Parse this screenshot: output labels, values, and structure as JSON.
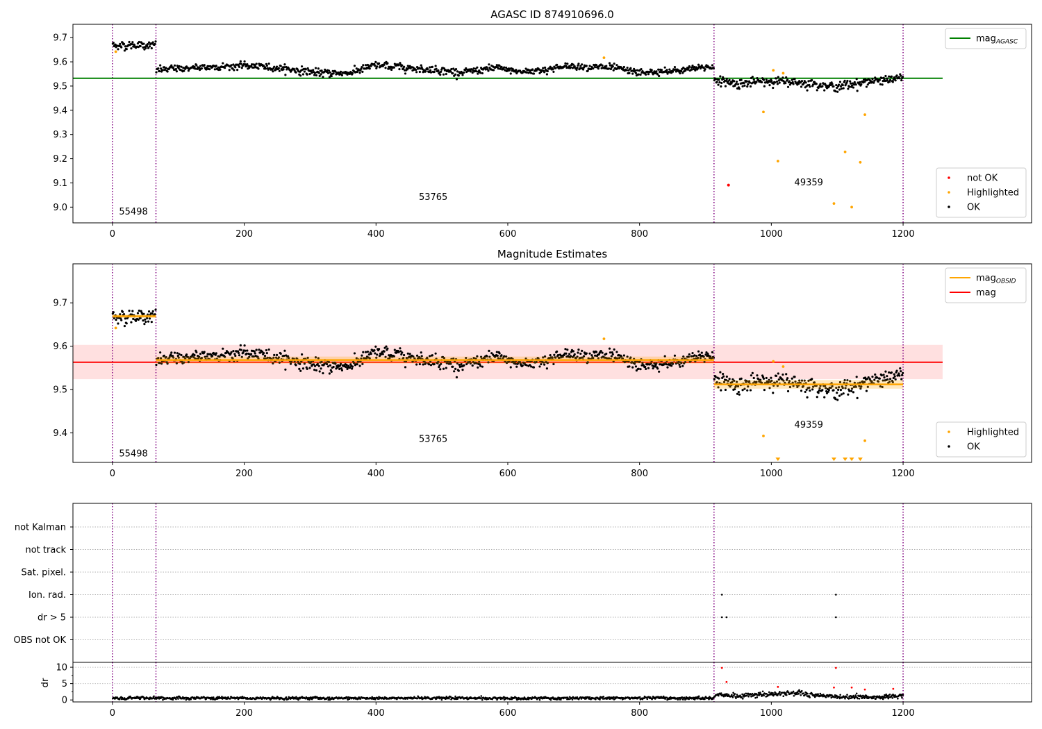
{
  "chart_data": [
    {
      "id": "agasc",
      "type": "scatter",
      "title": "AGASC ID 874910696.0",
      "xlim": [
        -60,
        1395
      ],
      "ylim": [
        8.935,
        9.755
      ],
      "xticks": [
        0,
        200,
        400,
        600,
        800,
        1000,
        1200
      ],
      "yticks": [
        9.0,
        9.1,
        9.2,
        9.3,
        9.4,
        9.5,
        9.6,
        9.7
      ],
      "ytick_labels": [
        "9.0",
        "9.1",
        "9.2",
        "9.3",
        "9.4",
        "9.5",
        "9.6",
        "9.7"
      ],
      "obs_boundaries": [
        0,
        66,
        913,
        1200
      ],
      "obs_labels": [
        {
          "text": "55498",
          "x": 10,
          "y": 8.97
        },
        {
          "text": "53765",
          "x": 465,
          "y": 9.03
        },
        {
          "text": "49359",
          "x": 1035,
          "y": 9.09
        }
      ],
      "lines": [
        {
          "name": "mag_AGASC",
          "color": "#008000",
          "y": 9.532,
          "x": [
            -60,
            1260
          ]
        }
      ],
      "legends": [
        {
          "position": "upper-right",
          "items": [
            {
              "label": "mag",
              "sub": "AGASC",
              "kind": "line",
              "color": "#008000"
            }
          ]
        },
        {
          "position": "lower-right",
          "items": [
            {
              "label": "not OK",
              "kind": "dot",
              "color": "#ff0000"
            },
            {
              "label": "Highlighted",
              "kind": "dot",
              "color": "#ffa500"
            },
            {
              "label": "OK",
              "kind": "dot",
              "color": "#000000"
            }
          ]
        }
      ],
      "ok_segments": [
        {
          "x": [
            0,
            66
          ],
          "level": 9.668,
          "sigma": 0.009
        },
        {
          "x": [
            66,
            913
          ],
          "level": [
            [
              66,
              9.567
            ],
            [
              120,
              9.575
            ],
            [
              200,
              9.585
            ],
            [
              250,
              9.575
            ],
            [
              320,
              9.553
            ],
            [
              360,
              9.555
            ],
            [
              400,
              9.585
            ],
            [
              450,
              9.575
            ],
            [
              500,
              9.565
            ],
            [
              530,
              9.555
            ],
            [
              580,
              9.575
            ],
            [
              620,
              9.558
            ],
            [
              700,
              9.583
            ],
            [
              760,
              9.575
            ],
            [
              800,
              9.555
            ],
            [
              850,
              9.56
            ],
            [
              913,
              9.582
            ]
          ],
          "sigma": 0.008
        },
        {
          "x": [
            913,
            1200
          ],
          "level": [
            [
              913,
              9.525
            ],
            [
              950,
              9.51
            ],
            [
              1000,
              9.522
            ],
            [
              1050,
              9.512
            ],
            [
              1100,
              9.497
            ],
            [
              1150,
              9.52
            ],
            [
              1200,
              9.532
            ]
          ],
          "sigma": 0.01
        }
      ],
      "highlighted": [
        [
          5,
          9.642
        ],
        [
          746,
          9.617
        ],
        [
          988,
          9.393
        ],
        [
          1003,
          9.565
        ],
        [
          1010,
          9.19
        ],
        [
          1018,
          9.553
        ],
        [
          1095,
          9.015
        ],
        [
          1112,
          9.228
        ],
        [
          1122,
          9.0
        ],
        [
          1135,
          9.185
        ],
        [
          1142,
          9.382
        ]
      ],
      "not_ok": [
        [
          935,
          9.091
        ]
      ]
    },
    {
      "id": "estimates",
      "type": "scatter",
      "title": "Magnitude Estimates",
      "xlim": [
        -60,
        1395
      ],
      "ylim": [
        9.332,
        9.79
      ],
      "xticks": [
        0,
        200,
        400,
        600,
        800,
        1000,
        1200
      ],
      "yticks": [
        9.4,
        9.5,
        9.6,
        9.7
      ],
      "ytick_labels": [
        "9.4",
        "9.5",
        "9.6",
        "9.7"
      ],
      "obs_boundaries": [
        0,
        66,
        913,
        1200
      ],
      "obs_labels": [
        {
          "text": "55498",
          "x": 10,
          "y": 9.346
        },
        {
          "text": "53765",
          "x": 465,
          "y": 9.379
        },
        {
          "text": "49359",
          "x": 1035,
          "y": 9.412
        }
      ],
      "band": {
        "color": "#ff0000",
        "opacity": 0.12,
        "y": [
          9.524,
          9.603
        ],
        "x": [
          -60,
          1260
        ]
      },
      "mean_line": {
        "name": "mag",
        "color": "#ff0000",
        "y": 9.563,
        "x": [
          -60,
          1260
        ]
      },
      "obsid_mags": [
        {
          "x": [
            0,
            66
          ],
          "y": 9.669,
          "err": 0.004
        },
        {
          "x": [
            66,
            913
          ],
          "y": 9.568,
          "err": 0.008
        },
        {
          "x": [
            913,
            1200
          ],
          "y": 9.512,
          "err": 0.01
        }
      ],
      "legends": [
        {
          "position": "upper-right",
          "items": [
            {
              "label": "mag",
              "sub": "OBSID",
              "kind": "line",
              "color": "#ffa500"
            },
            {
              "label": "mag",
              "kind": "line",
              "color": "#ff0000"
            }
          ]
        },
        {
          "position": "lower-right",
          "items": [
            {
              "label": "Highlighted",
              "kind": "dot",
              "color": "#ffa500"
            },
            {
              "label": "OK",
              "kind": "dot",
              "color": "#000000"
            }
          ]
        }
      ],
      "highlighted": [
        [
          5,
          9.642
        ],
        [
          746,
          9.617
        ],
        [
          988,
          9.393
        ],
        [
          1003,
          9.565
        ],
        [
          1018,
          9.553
        ],
        [
          1142,
          9.382
        ]
      ],
      "off_scale_x": [
        1010,
        1095,
        1112,
        1122,
        1135
      ]
    },
    {
      "id": "flags",
      "type": "scatter",
      "xlim": [
        -60,
        1395
      ],
      "categories": [
        "not Kalman",
        "not track",
        "Sat. pixel.",
        "Ion. rad.",
        "dr > 5",
        "OBS not OK"
      ],
      "obs_boundaries": [
        0,
        66,
        913,
        1200
      ],
      "flags": [
        {
          "category": "Ion. rad.",
          "x": [
            925,
            1098
          ]
        },
        {
          "category": "dr > 5",
          "x": [
            925,
            932,
            1098
          ]
        }
      ]
    },
    {
      "id": "dr",
      "type": "scatter",
      "ylabel": "dr",
      "xlim": [
        -60,
        1395
      ],
      "ylim": [
        -0.6,
        11.5
      ],
      "yticks": [
        0,
        5,
        10
      ],
      "ytick_labels": [
        "0",
        "5",
        "10"
      ],
      "xticks": [
        0,
        200,
        400,
        600,
        800,
        1000,
        1200
      ],
      "obs_boundaries": [
        0,
        66,
        913,
        1200
      ],
      "ok_segments": [
        {
          "x": [
            0,
            913
          ],
          "level": 0.55,
          "sigma": 0.22
        },
        {
          "x": [
            913,
            1200
          ],
          "level": [
            [
              913,
              1.6
            ],
            [
              950,
              1.2
            ],
            [
              1000,
              1.8
            ],
            [
              1030,
              2.3
            ],
            [
              1060,
              1.5
            ],
            [
              1100,
              1.1
            ],
            [
              1150,
              0.8
            ],
            [
              1200,
              1.2
            ]
          ],
          "sigma": 0.4
        }
      ],
      "red_points": [
        [
          925,
          9.8
        ],
        [
          932,
          5.5
        ],
        [
          1010,
          4.0
        ],
        [
          1098,
          9.8
        ],
        [
          1095,
          3.8
        ],
        [
          1122,
          3.8
        ],
        [
          1142,
          3.2
        ],
        [
          1185,
          3.4
        ]
      ]
    }
  ]
}
